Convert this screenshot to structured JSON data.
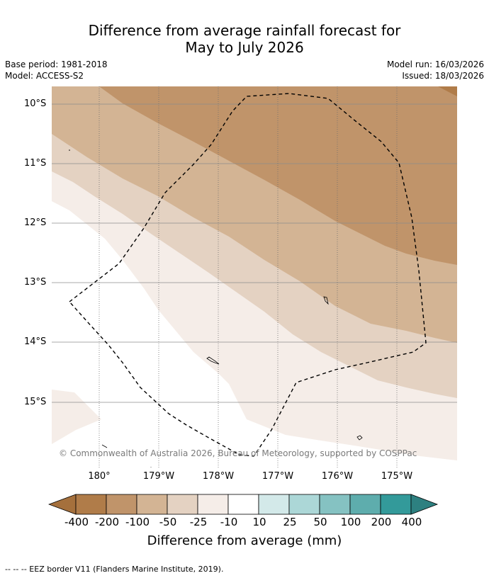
{
  "title_line1": "Difference from average rainfall forecast for",
  "title_line2": "May to July 2026",
  "base_period": "Base period: 1981-2018",
  "model": "Model: ACCESS-S2",
  "model_run": "Model run: 16/03/2026",
  "issued": "Issued: 18/03/2026",
  "latitude_labels": [
    "10°S",
    "11°S",
    "12°S",
    "13°S",
    "14°S",
    "15°S"
  ],
  "longitude_labels": [
    "180°",
    "179°W",
    "178°W",
    "177°W",
    "176°W",
    "175°W"
  ],
  "colorbar": {
    "labels": [
      "-400",
      "-200",
      "-100",
      "-50",
      "-25",
      "-10",
      "10",
      "25",
      "50",
      "100",
      "200",
      "400"
    ],
    "colors": [
      "#a5703c",
      "#b07c49",
      "#c0946a",
      "#d3b494",
      "#e4d2c2",
      "#f5ede8",
      "#ffffff",
      "#d3e9e9",
      "#acd7d7",
      "#85c2c2",
      "#5eadad",
      "#339a9a",
      "#2d8080"
    ],
    "title": "Difference from average (mm)"
  },
  "copyright": "© Commonwealth of Australia 2026, Bureau of Meteorology, supported by COSPPac",
  "footer": "-- -- -- EEZ border V11 (Flanders Marine Institute, 2019).",
  "map_colors": {
    "band_200": "#c0946a",
    "band_100": "#d3b494",
    "band_50": "#e4d2c2",
    "band_25": "#f5ede8",
    "band_neutral": "#ffffff",
    "band_400": "#b07c49"
  }
}
